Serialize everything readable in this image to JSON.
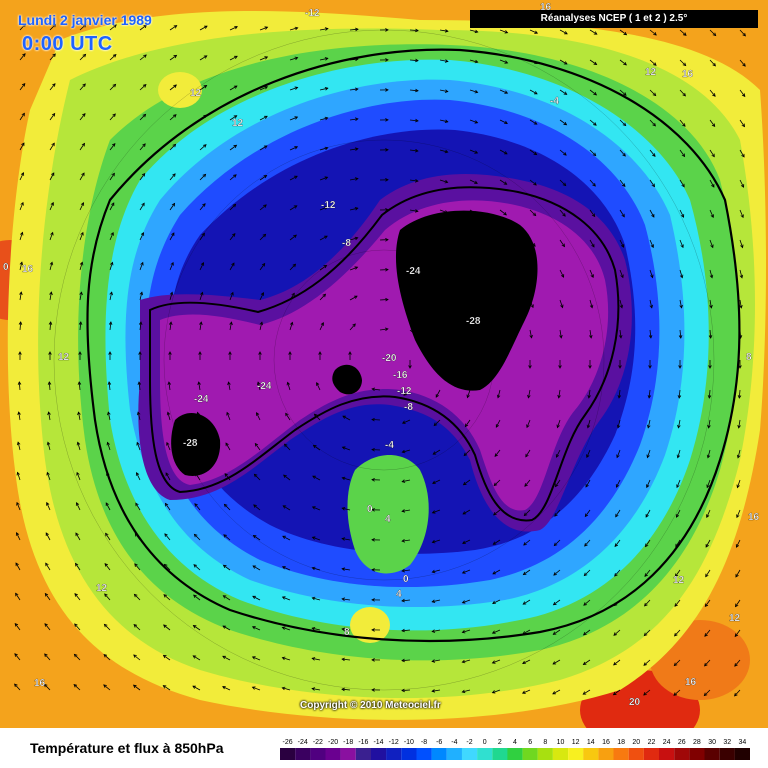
{
  "header": {
    "date_title": "Lundi 2 janvier 1989",
    "time_title": "0:00 UTC",
    "dataset": "Réanalyses NCEP ( 1 et 2 ) 2.5°"
  },
  "footer": {
    "variable_title": "Température et flux à 850hPa",
    "copyright": "Copyright © 2010 Meteociel.fr"
  },
  "legend": {
    "values": [
      "-26",
      "-24",
      "-22",
      "-20",
      "-18",
      "-16",
      "-14",
      "-12",
      "-10",
      "-8",
      "-6",
      "-4",
      "-2",
      "0",
      "2",
      "4",
      "6",
      "8",
      "10",
      "12",
      "14",
      "16",
      "18",
      "20",
      "22",
      "24",
      "26",
      "28",
      "30",
      "32",
      "34"
    ],
    "colors": [
      "#2a0040",
      "#3a0060",
      "#500080",
      "#6a0090",
      "#8a10a0",
      "#3a2090",
      "#2010a0",
      "#1020c0",
      "#0030e0",
      "#0050ff",
      "#0088ff",
      "#20b0ff",
      "#40d8ff",
      "#30e0d0",
      "#20d890",
      "#30d040",
      "#70d820",
      "#a8e010",
      "#d8e810",
      "#f8f020",
      "#f8c810",
      "#f8a010",
      "#f87a10",
      "#f05010",
      "#e02a10",
      "#c81010",
      "#a00808",
      "#800000",
      "#5a0000",
      "#3a0000",
      "#200000"
    ]
  },
  "map": {
    "zones": [
      {
        "name": "outer-warm",
        "color": "#f4a31c"
      },
      {
        "name": "yellow",
        "color": "#f2ec3a"
      },
      {
        "name": "yellow-green",
        "color": "#b6e63a"
      },
      {
        "name": "green",
        "color": "#5bd34a"
      },
      {
        "name": "cyan",
        "color": "#33e6f2"
      },
      {
        "name": "light-blue",
        "color": "#2fa6ff"
      },
      {
        "name": "blue",
        "color": "#1f4cff"
      },
      {
        "name": "dark-blue",
        "color": "#1414b4"
      },
      {
        "name": "violet",
        "color": "#5a10a0"
      },
      {
        "name": "magenta",
        "color": "#a01ab0"
      },
      {
        "name": "black-core",
        "color": "#000000"
      }
    ],
    "labels": [
      {
        "text": "-12",
        "name": "label-top"
      },
      {
        "text": "12",
        "name": "label-nw"
      },
      {
        "text": "12",
        "name": "label-nw2"
      },
      {
        "text": "12",
        "name": "label-ne"
      },
      {
        "text": "16",
        "name": "label-ne2"
      },
      {
        "text": "-4",
        "name": "label-ne3"
      },
      {
        "text": "0",
        "name": "label-w"
      },
      {
        "text": "16",
        "name": "label-w2"
      },
      {
        "text": "-12",
        "name": "label-center-n"
      },
      {
        "text": "-8",
        "name": "label-center-n2"
      },
      {
        "text": "-24",
        "name": "label-center"
      },
      {
        "text": "-28",
        "name": "label-center2"
      },
      {
        "text": "-20",
        "name": "label-c3"
      },
      {
        "text": "-16",
        "name": "label-c4"
      },
      {
        "text": "-12",
        "name": "label-c5"
      },
      {
        "text": "-8",
        "name": "label-c6"
      },
      {
        "text": "-24",
        "name": "label-w3"
      },
      {
        "text": "-24",
        "name": "label-w4"
      },
      {
        "text": "-28",
        "name": "label-w5"
      },
      {
        "text": "12",
        "name": "label-w6"
      },
      {
        "text": "8",
        "name": "label-e"
      },
      {
        "text": "-4",
        "name": "label-s1"
      },
      {
        "text": "0",
        "name": "label-s2"
      },
      {
        "text": "4",
        "name": "label-s3"
      },
      {
        "text": "0",
        "name": "label-s4"
      },
      {
        "text": "4",
        "name": "label-s5"
      },
      {
        "text": "12",
        "name": "label-sw"
      },
      {
        "text": "8",
        "name": "label-s6"
      },
      {
        "text": "16",
        "name": "label-e2"
      },
      {
        "text": "12",
        "name": "label-se1"
      },
      {
        "text": "12",
        "name": "label-se2"
      },
      {
        "text": "16",
        "name": "label-se3"
      },
      {
        "text": "20",
        "name": "label-se4"
      },
      {
        "text": "16",
        "name": "label-sw2"
      },
      {
        "text": "16",
        "name": "label-sw3"
      }
    ]
  }
}
